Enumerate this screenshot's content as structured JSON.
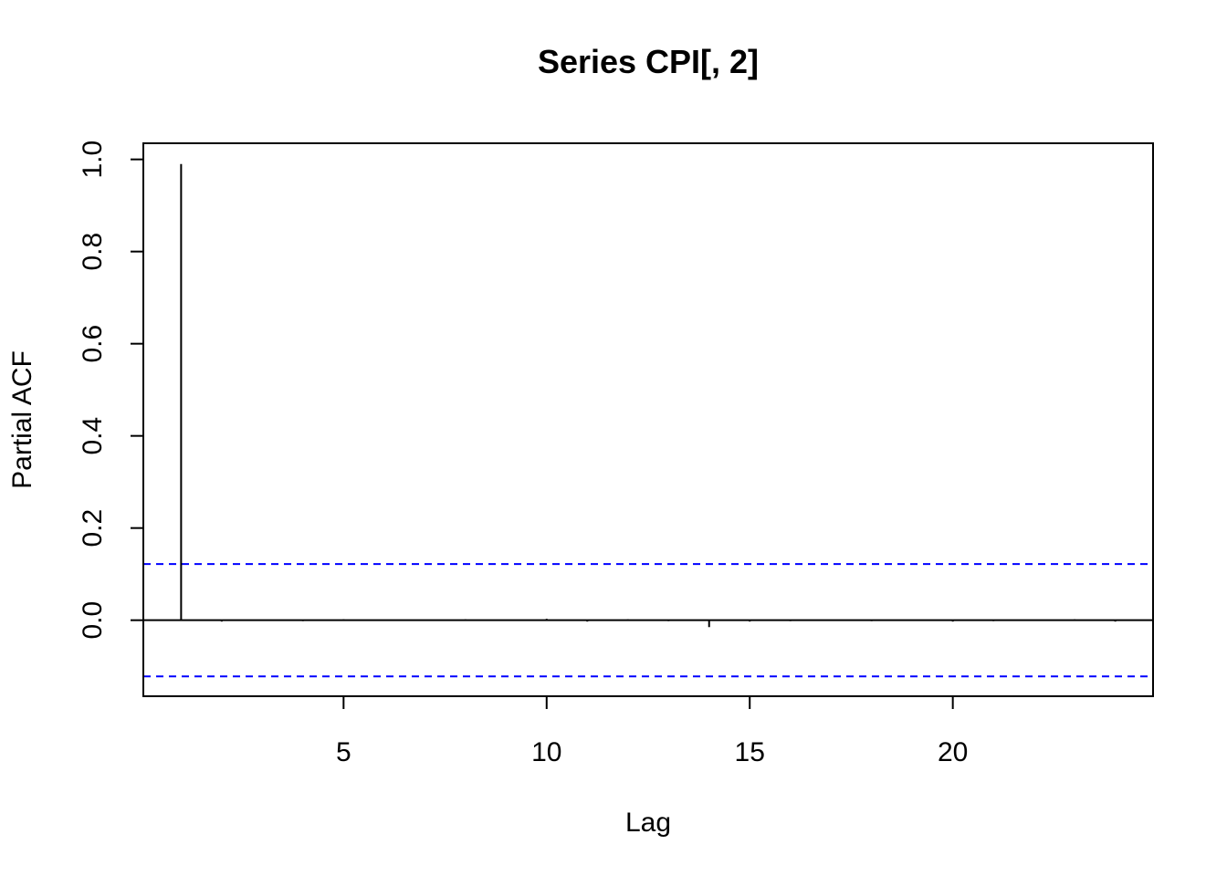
{
  "chart_data": {
    "type": "bar",
    "title": "Series  CPI[, 2]",
    "xlabel": "Lag",
    "ylabel": "Partial ACF",
    "xlim": [
      0.07,
      24.93
    ],
    "ylim": [
      -0.165,
      1.035
    ],
    "x_ticks": [
      5,
      10,
      15,
      20
    ],
    "y_ticks": [
      0.0,
      0.2,
      0.4,
      0.6,
      0.8,
      1.0
    ],
    "y_tick_labels": [
      "0.0",
      "0.2",
      "0.4",
      "0.6",
      "0.8",
      "1.0"
    ],
    "lags": [
      1,
      2,
      3,
      4,
      5,
      6,
      7,
      8,
      9,
      10,
      11,
      12,
      13,
      14,
      15,
      16,
      17,
      18,
      19,
      20,
      21,
      22,
      23,
      24
    ],
    "values": [
      0.99,
      -0.003,
      0.001,
      -0.002,
      0.002,
      -0.001,
      0.001,
      0.002,
      -0.001,
      0.003,
      -0.003,
      0.002,
      -0.002,
      -0.015,
      -0.003,
      -0.002,
      0.001,
      -0.002,
      0.001,
      -0.003,
      -0.002,
      0.001,
      0.002,
      -0.003
    ],
    "confidence_bounds": [
      0.122,
      -0.122
    ],
    "confidence_color": "#0000ff",
    "bar_color": "#000000",
    "grid": false
  }
}
